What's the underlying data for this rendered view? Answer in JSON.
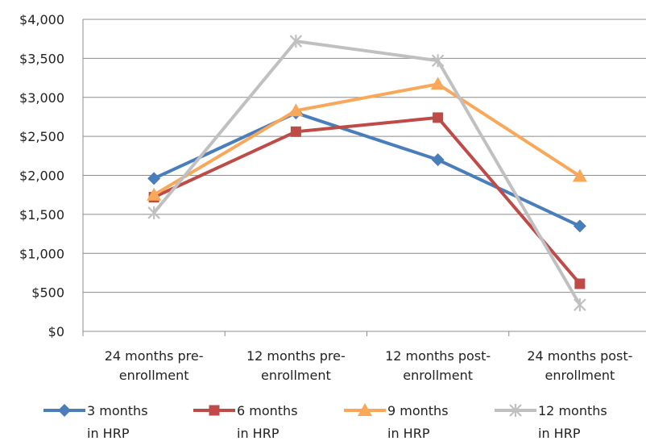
{
  "chart_data": {
    "type": "line",
    "categories": [
      [
        "24 months pre-",
        "enrollment"
      ],
      [
        "12 months pre-",
        "enrollment"
      ],
      [
        "12 months post-",
        "enrollment"
      ],
      [
        "24 months post-",
        "enrollment"
      ]
    ],
    "ylim": [
      0,
      4000
    ],
    "yticks": [
      0,
      500,
      1000,
      1500,
      2000,
      2500,
      3000,
      3500,
      4000
    ],
    "ytick_labels": [
      "$0",
      "$500",
      "$1,000",
      "$1,500",
      "$2,000",
      "$2,500",
      "$3,000",
      "$3,500",
      "$4,000"
    ],
    "grid": true,
    "legend_position": "bottom",
    "series": [
      {
        "name": [
          "3 months",
          "in HRP"
        ],
        "color": "#4a7ebb",
        "marker": "diamond",
        "values": [
          1960,
          2800,
          2200,
          1350
        ]
      },
      {
        "name": [
          "6 months",
          "in HRP"
        ],
        "color": "#be4b48",
        "marker": "square",
        "values": [
          1720,
          2560,
          2740,
          610
        ]
      },
      {
        "name": [
          "9 months",
          "in HRP"
        ],
        "color": "#f9a85a",
        "marker": "triangle",
        "values": [
          1750,
          2830,
          3170,
          1990
        ]
      },
      {
        "name": [
          "12 months",
          "in HRP"
        ],
        "color": "#c0c0c0",
        "marker": "star",
        "values": [
          1520,
          3720,
          3470,
          340
        ]
      }
    ]
  }
}
